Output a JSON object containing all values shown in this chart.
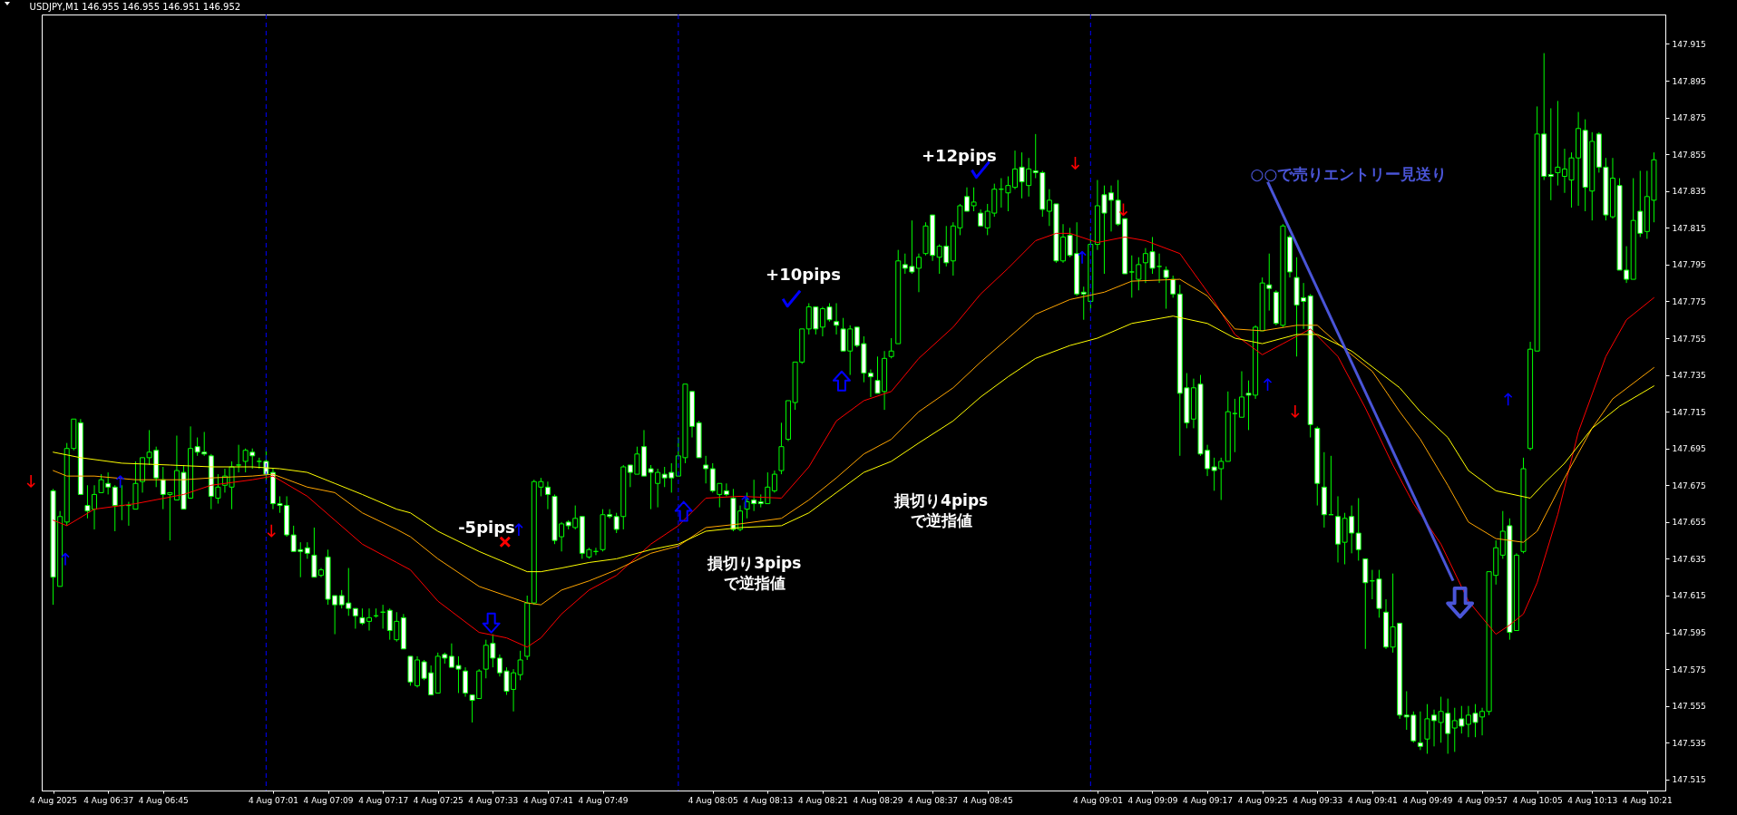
{
  "chart_data": {
    "type": "candlestick",
    "title": "USDJPY,M1  146.955 146.955 146.951 146.952",
    "x": [
      "2025-08-04T06:29",
      "2025-08-04T06:30",
      "2025-08-04T06:31",
      "2025-08-04T06:32",
      "2025-08-04T06:33",
      "2025-08-04T06:34",
      "2025-08-04T06:35",
      "2025-08-04T06:36",
      "2025-08-04T06:37",
      "2025-08-04T06:38",
      "2025-08-04T06:39",
      "2025-08-04T06:40",
      "2025-08-04T06:41",
      "2025-08-04T06:42",
      "2025-08-04T06:43",
      "2025-08-04T06:44",
      "2025-08-04T06:45",
      "2025-08-04T06:46",
      "2025-08-04T06:47",
      "2025-08-04T06:48",
      "2025-08-04T06:49",
      "2025-08-04T06:50",
      "2025-08-04T06:51",
      "2025-08-04T06:52",
      "2025-08-04T06:53",
      "2025-08-04T06:54",
      "2025-08-04T06:55",
      "2025-08-04T06:56",
      "2025-08-04T06:57",
      "2025-08-04T06:58",
      "2025-08-04T06:59",
      "2025-08-04T07:00",
      "2025-08-04T07:01",
      "2025-08-04T07:02",
      "2025-08-04T07:03",
      "2025-08-04T07:04",
      "2025-08-04T07:05",
      "2025-08-04T07:06",
      "2025-08-04T07:07",
      "2025-08-04T07:08",
      "2025-08-04T07:09",
      "2025-08-04T07:10",
      "2025-08-04T07:11",
      "2025-08-04T07:12",
      "2025-08-04T07:13",
      "2025-08-04T07:14",
      "2025-08-04T07:15",
      "2025-08-04T07:16",
      "2025-08-04T07:17",
      "2025-08-04T07:18",
      "2025-08-04T07:19",
      "2025-08-04T07:20",
      "2025-08-04T07:21",
      "2025-08-04T07:22",
      "2025-08-04T07:23",
      "2025-08-04T07:24",
      "2025-08-04T07:25",
      "2025-08-04T07:26",
      "2025-08-04T07:27",
      "2025-08-04T07:28",
      "2025-08-04T07:29",
      "2025-08-04T07:30",
      "2025-08-04T07:31",
      "2025-08-04T07:32",
      "2025-08-04T07:33",
      "2025-08-04T07:34",
      "2025-08-04T07:35",
      "2025-08-04T07:36",
      "2025-08-04T07:37",
      "2025-08-04T07:38",
      "2025-08-04T07:39",
      "2025-08-04T07:40",
      "2025-08-04T07:41",
      "2025-08-04T07:42",
      "2025-08-04T07:43",
      "2025-08-04T07:44",
      "2025-08-04T07:45",
      "2025-08-04T07:46",
      "2025-08-04T07:47",
      "2025-08-04T07:48",
      "2025-08-04T07:49",
      "2025-08-04T07:50",
      "2025-08-04T07:51",
      "2025-08-04T07:52",
      "2025-08-04T07:53",
      "2025-08-04T07:54",
      "2025-08-04T07:55",
      "2025-08-04T07:56",
      "2025-08-04T07:57",
      "2025-08-04T07:58",
      "2025-08-04T07:59",
      "2025-08-04T08:00",
      "2025-08-04T08:01",
      "2025-08-04T08:02",
      "2025-08-04T08:03",
      "2025-08-04T08:04",
      "2025-08-04T08:05",
      "2025-08-04T08:06",
      "2025-08-04T08:07",
      "2025-08-04T08:08",
      "2025-08-04T08:09",
      "2025-08-04T08:10",
      "2025-08-04T08:11",
      "2025-08-04T08:12",
      "2025-08-04T08:13",
      "2025-08-04T08:14",
      "2025-08-04T08:15",
      "2025-08-04T08:16",
      "2025-08-04T08:17",
      "2025-08-04T08:18",
      "2025-08-04T08:19",
      "2025-08-04T08:20",
      "2025-08-04T08:21",
      "2025-08-04T08:22",
      "2025-08-04T08:23",
      "2025-08-04T08:24",
      "2025-08-04T08:25",
      "2025-08-04T08:26",
      "2025-08-04T08:27",
      "2025-08-04T08:28",
      "2025-08-04T08:29",
      "2025-08-04T08:30",
      "2025-08-04T08:31",
      "2025-08-04T08:32",
      "2025-08-04T08:33",
      "2025-08-04T08:34",
      "2025-08-04T08:35",
      "2025-08-04T08:36",
      "2025-08-04T08:37",
      "2025-08-04T08:38",
      "2025-08-04T08:39",
      "2025-08-04T08:40",
      "2025-08-04T08:41",
      "2025-08-04T08:42",
      "2025-08-04T08:43",
      "2025-08-04T08:44",
      "2025-08-04T08:45",
      "2025-08-04T08:46",
      "2025-08-04T08:47",
      "2025-08-04T08:48",
      "2025-08-04T08:49",
      "2025-08-04T08:50",
      "2025-08-04T08:51",
      "2025-08-04T08:52",
      "2025-08-04T08:53",
      "2025-08-04T08:54",
      "2025-08-04T08:55",
      "2025-08-04T08:56",
      "2025-08-04T08:57",
      "2025-08-04T08:58",
      "2025-08-04T08:59",
      "2025-08-04T09:00",
      "2025-08-04T09:01",
      "2025-08-04T09:02",
      "2025-08-04T09:03",
      "2025-08-04T09:04",
      "2025-08-04T09:05",
      "2025-08-04T09:06",
      "2025-08-04T09:07",
      "2025-08-04T09:08",
      "2025-08-04T09:09",
      "2025-08-04T09:10",
      "2025-08-04T09:11",
      "2025-08-04T09:12",
      "2025-08-04T09:13",
      "2025-08-04T09:14",
      "2025-08-04T09:15",
      "2025-08-04T09:16",
      "2025-08-04T09:17",
      "2025-08-04T09:18",
      "2025-08-04T09:19",
      "2025-08-04T09:20",
      "2025-08-04T09:21",
      "2025-08-04T09:22",
      "2025-08-04T09:23",
      "2025-08-04T09:24",
      "2025-08-04T09:25",
      "2025-08-04T09:26",
      "2025-08-04T09:27",
      "2025-08-04T09:28",
      "2025-08-04T09:29",
      "2025-08-04T09:30",
      "2025-08-04T09:31",
      "2025-08-04T09:32",
      "2025-08-04T09:33",
      "2025-08-04T09:34",
      "2025-08-04T09:35",
      "2025-08-04T09:36",
      "2025-08-04T09:37",
      "2025-08-04T09:38",
      "2025-08-04T09:39",
      "2025-08-04T09:40",
      "2025-08-04T09:41",
      "2025-08-04T09:42",
      "2025-08-04T09:43",
      "2025-08-04T09:44",
      "2025-08-04T09:45",
      "2025-08-04T09:46",
      "2025-08-04T09:47",
      "2025-08-04T09:48",
      "2025-08-04T09:49",
      "2025-08-04T09:50",
      "2025-08-04T09:51",
      "2025-08-04T09:52",
      "2025-08-04T09:53",
      "2025-08-04T09:54",
      "2025-08-04T09:55",
      "2025-08-04T09:56",
      "2025-08-04T09:57",
      "2025-08-04T09:58",
      "2025-08-04T09:59",
      "2025-08-04T10:00",
      "2025-08-04T10:01",
      "2025-08-04T10:02",
      "2025-08-04T10:03",
      "2025-08-04T10:04",
      "2025-08-04T10:05",
      "2025-08-04T10:06",
      "2025-08-04T10:07",
      "2025-08-04T10:08",
      "2025-08-04T10:09",
      "2025-08-04T10:10",
      "2025-08-04T10:11",
      "2025-08-04T10:12",
      "2025-08-04T10:13",
      "2025-08-04T10:14",
      "2025-08-04T10:15",
      "2025-08-04T10:16",
      "2025-08-04T10:17",
      "2025-08-04T10:18",
      "2025-08-04T10:19",
      "2025-08-04T10:20",
      "2025-08-04T10:21",
      "2025-08-04T10:22"
    ],
    "ohlc": [
      [
        147.672,
        147.673,
        147.61,
        147.625
      ],
      [
        147.62,
        147.661,
        147.62,
        147.658
      ],
      [
        147.655,
        147.698,
        147.653,
        147.695
      ],
      [
        147.695,
        147.711,
        147.694,
        147.711
      ],
      [
        147.709,
        147.711,
        147.67,
        147.67
      ],
      [
        147.664,
        147.675,
        147.657,
        147.661
      ],
      [
        147.662,
        147.675,
        147.651,
        147.67
      ],
      [
        147.671,
        147.681,
        147.671,
        147.678
      ],
      [
        147.676,
        147.682,
        147.67,
        147.674
      ],
      [
        147.674,
        147.675,
        147.65,
        147.664
      ],
      [
        147.664,
        147.675,
        147.656,
        147.664
      ],
      [
        147.664,
        147.666,
        147.653,
        147.664
      ],
      [
        147.662,
        147.688,
        147.662,
        147.676
      ],
      [
        147.677,
        147.69,
        147.671,
        147.69
      ],
      [
        147.69,
        147.705,
        147.686,
        147.693
      ],
      [
        147.694,
        147.696,
        147.674,
        147.679
      ],
      [
        147.678,
        147.685,
        147.662,
        147.67
      ],
      [
        147.67,
        147.671,
        147.645,
        147.671
      ],
      [
        147.667,
        147.702,
        147.667,
        147.683
      ],
      [
        147.682,
        147.686,
        147.662,
        147.662
      ],
      [
        147.668,
        147.707,
        147.668,
        147.695
      ],
      [
        147.696,
        147.701,
        147.691,
        147.693
      ],
      [
        147.693,
        147.704,
        147.691,
        147.692
      ],
      [
        147.691,
        147.692,
        147.662,
        147.669
      ],
      [
        147.668,
        147.681,
        147.665,
        147.674
      ],
      [
        147.675,
        147.684,
        147.671,
        147.68
      ],
      [
        147.674,
        147.688,
        147.662,
        147.685
      ],
      [
        147.686,
        147.697,
        147.682,
        147.686
      ],
      [
        147.688,
        147.695,
        147.682,
        147.694
      ],
      [
        147.693,
        147.695,
        147.684,
        147.691
      ],
      [
        147.688,
        147.69,
        147.684,
        147.688
      ],
      [
        147.688,
        147.695,
        147.677,
        147.681
      ],
      [
        147.682,
        147.684,
        147.662,
        147.665
      ],
      [
        147.665,
        147.669,
        147.66,
        147.664
      ],
      [
        147.664,
        147.669,
        147.647,
        147.648
      ],
      [
        147.648,
        147.653,
        147.639,
        147.639
      ],
      [
        147.64,
        147.644,
        147.625,
        147.639
      ],
      [
        147.641,
        147.644,
        147.635,
        147.638
      ],
      [
        147.637,
        147.652,
        147.625,
        147.625
      ],
      [
        147.626,
        147.63,
        147.625,
        147.629
      ],
      [
        147.636,
        147.64,
        147.61,
        147.613
      ],
      [
        147.615,
        147.615,
        147.594,
        147.61
      ],
      [
        147.615,
        147.618,
        147.608,
        147.61
      ],
      [
        147.611,
        147.63,
        147.604,
        147.608
      ],
      [
        147.608,
        147.608,
        147.597,
        147.604
      ],
      [
        147.603,
        147.608,
        147.599,
        147.6
      ],
      [
        147.601,
        147.608,
        147.596,
        147.603
      ],
      [
        147.604,
        147.608,
        147.603,
        147.604
      ],
      [
        147.606,
        147.61,
        147.597,
        147.606
      ],
      [
        147.607,
        147.608,
        147.591,
        147.596
      ],
      [
        147.591,
        147.606,
        147.59,
        147.601
      ],
      [
        147.603,
        147.605,
        147.586,
        147.586
      ],
      [
        147.582,
        147.582,
        147.566,
        147.568
      ],
      [
        147.566,
        147.582,
        147.565,
        147.58
      ],
      [
        147.579,
        147.58,
        147.569,
        147.57
      ],
      [
        147.573,
        147.577,
        147.561,
        147.561
      ],
      [
        147.562,
        147.584,
        147.562,
        147.582
      ],
      [
        147.583,
        147.584,
        147.578,
        147.581
      ],
      [
        147.582,
        147.589,
        147.576,
        147.576
      ],
      [
        147.577,
        147.582,
        147.562,
        147.575
      ],
      [
        147.574,
        147.576,
        147.56,
        147.562
      ],
      [
        147.561,
        147.561,
        147.546,
        147.558
      ],
      [
        147.559,
        147.575,
        147.559,
        147.574
      ],
      [
        147.575,
        147.591,
        147.57,
        147.588
      ],
      [
        147.589,
        147.594,
        147.576,
        147.581
      ],
      [
        147.581,
        147.583,
        147.571,
        147.573
      ],
      [
        147.574,
        147.576,
        147.561,
        147.563
      ],
      [
        147.564,
        147.575,
        147.552,
        147.573
      ],
      [
        147.572,
        147.585,
        147.569,
        147.58
      ],
      [
        147.582,
        147.615,
        147.58,
        147.611
      ],
      [
        147.611,
        147.678,
        147.61,
        147.677
      ],
      [
        147.674,
        147.679,
        147.669,
        147.677
      ],
      [
        147.674,
        147.677,
        147.662,
        147.67
      ],
      [
        147.669,
        147.67,
        147.643,
        147.645
      ],
      [
        147.647,
        147.655,
        147.639,
        147.654
      ],
      [
        147.655,
        147.656,
        147.651,
        147.653
      ],
      [
        147.652,
        147.664,
        147.651,
        147.657
      ],
      [
        147.658,
        147.658,
        147.635,
        147.638
      ],
      [
        147.636,
        147.641,
        147.635,
        147.64
      ],
      [
        147.639,
        147.641,
        147.637,
        147.639
      ],
      [
        147.64,
        147.662,
        147.639,
        147.659
      ],
      [
        147.659,
        147.662,
        147.657,
        147.658
      ],
      [
        147.658,
        147.66,
        147.649,
        147.651
      ],
      [
        147.658,
        147.686,
        147.651,
        147.685
      ],
      [
        147.686,
        147.686,
        147.674,
        147.682
      ],
      [
        147.681,
        147.696,
        147.681,
        147.692
      ],
      [
        147.696,
        147.705,
        147.68,
        147.68
      ],
      [
        147.684,
        147.686,
        147.662,
        147.682
      ],
      [
        147.676,
        147.684,
        147.663,
        147.682
      ],
      [
        147.681,
        147.685,
        147.674,
        147.679
      ],
      [
        147.682,
        147.687,
        147.671,
        147.679
      ],
      [
        147.68,
        147.701,
        147.68,
        147.691
      ],
      [
        147.69,
        147.73,
        147.687,
        147.73
      ],
      [
        147.726,
        147.726,
        147.701,
        147.707
      ],
      [
        147.709,
        147.71,
        147.69,
        147.69
      ],
      [
        147.686,
        147.691,
        147.676,
        147.684
      ],
      [
        147.684,
        147.687,
        147.671,
        147.672
      ],
      [
        147.67,
        147.676,
        147.663,
        147.676
      ],
      [
        147.672,
        147.676,
        147.669,
        147.67
      ],
      [
        147.668,
        147.673,
        147.65,
        147.651
      ],
      [
        147.651,
        147.664,
        147.65,
        147.661
      ],
      [
        147.662,
        147.671,
        147.657,
        147.666
      ],
      [
        147.667,
        147.678,
        147.661,
        147.665
      ],
      [
        147.666,
        147.67,
        147.663,
        147.665
      ],
      [
        147.665,
        147.682,
        147.665,
        147.674
      ],
      [
        147.672,
        147.683,
        147.671,
        147.681
      ],
      [
        147.683,
        147.709,
        147.681,
        147.696
      ],
      [
        147.7,
        147.721,
        147.699,
        147.721
      ],
      [
        147.72,
        147.742,
        147.716,
        147.742
      ],
      [
        147.742,
        147.76,
        147.741,
        147.76
      ],
      [
        147.76,
        147.774,
        147.757,
        147.772
      ],
      [
        147.772,
        147.772,
        147.757,
        147.76
      ],
      [
        147.761,
        147.772,
        147.756,
        147.771
      ],
      [
        147.772,
        147.774,
        147.764,
        147.765
      ],
      [
        147.764,
        147.774,
        147.757,
        147.762
      ],
      [
        147.76,
        147.766,
        147.748,
        147.748
      ],
      [
        147.748,
        147.762,
        147.735,
        147.76
      ],
      [
        147.761,
        147.761,
        147.75,
        147.751
      ],
      [
        147.752,
        147.756,
        147.731,
        147.736
      ],
      [
        147.736,
        147.738,
        147.723,
        147.734
      ],
      [
        147.732,
        147.745,
        147.725,
        147.725
      ],
      [
        147.726,
        147.748,
        147.716,
        147.744
      ],
      [
        147.745,
        147.755,
        147.744,
        147.748
      ],
      [
        147.752,
        147.803,
        147.752,
        147.797
      ],
      [
        147.795,
        147.801,
        147.79,
        147.793
      ],
      [
        147.794,
        147.819,
        147.79,
        147.791
      ],
      [
        147.793,
        147.801,
        147.78,
        147.799
      ],
      [
        147.801,
        147.818,
        147.8,
        147.816
      ],
      [
        147.822,
        147.822,
        147.797,
        147.8
      ],
      [
        147.799,
        147.806,
        147.79,
        147.805
      ],
      [
        147.805,
        147.816,
        147.794,
        147.796
      ],
      [
        147.797,
        147.818,
        147.789,
        147.816
      ],
      [
        147.815,
        147.828,
        147.811,
        147.827
      ],
      [
        147.832,
        147.837,
        147.824,
        147.824
      ],
      [
        147.827,
        147.837,
        147.824,
        147.829
      ],
      [
        147.823,
        147.825,
        147.816,
        147.816
      ],
      [
        147.815,
        147.828,
        147.811,
        147.824
      ],
      [
        147.823,
        147.839,
        147.821,
        147.836
      ],
      [
        147.836,
        147.842,
        147.826,
        147.836
      ],
      [
        147.834,
        147.843,
        147.824,
        147.838
      ],
      [
        147.837,
        147.857,
        147.836,
        147.847
      ],
      [
        147.848,
        147.856,
        147.831,
        147.84
      ],
      [
        147.838,
        147.853,
        147.832,
        147.847
      ],
      [
        147.846,
        147.866,
        147.842,
        147.845
      ],
      [
        147.845,
        147.846,
        147.821,
        147.825
      ],
      [
        147.824,
        147.836,
        147.816,
        147.83
      ],
      [
        147.828,
        147.828,
        147.796,
        147.797
      ],
      [
        147.797,
        147.817,
        147.796,
        147.81
      ],
      [
        147.811,
        147.815,
        147.799,
        147.8
      ],
      [
        147.801,
        147.818,
        147.778,
        147.779
      ],
      [
        147.78,
        147.783,
        147.765,
        147.779
      ],
      [
        147.775,
        147.812,
        147.77,
        147.806
      ],
      [
        147.806,
        147.841,
        147.803,
        147.827
      ],
      [
        147.833,
        147.838,
        147.79,
        147.823
      ],
      [
        147.834,
        147.838,
        147.813,
        147.83
      ],
      [
        147.83,
        147.841,
        147.816,
        147.817
      ],
      [
        147.82,
        147.82,
        147.79,
        147.79
      ],
      [
        147.791,
        147.8,
        147.777,
        147.791
      ],
      [
        147.787,
        147.799,
        147.781,
        147.795
      ],
      [
        147.796,
        147.804,
        147.785,
        147.801
      ],
      [
        147.802,
        147.81,
        147.79,
        147.793
      ],
      [
        147.794,
        147.801,
        147.785,
        147.794
      ],
      [
        147.792,
        147.794,
        147.771,
        147.788
      ],
      [
        147.787,
        147.789,
        147.777,
        147.779
      ],
      [
        147.779,
        147.784,
        147.691,
        147.725
      ],
      [
        147.728,
        147.736,
        147.706,
        147.709
      ],
      [
        147.711,
        147.733,
        147.706,
        147.728
      ],
      [
        147.73,
        147.735,
        147.691,
        147.692
      ],
      [
        147.694,
        147.697,
        147.68,
        147.684
      ],
      [
        147.685,
        147.69,
        147.672,
        147.683
      ],
      [
        147.684,
        147.69,
        147.667,
        147.688
      ],
      [
        147.688,
        147.726,
        147.688,
        147.715
      ],
      [
        147.714,
        147.722,
        147.693,
        147.714
      ],
      [
        147.712,
        147.737,
        147.712,
        147.723
      ],
      [
        147.725,
        147.732,
        147.705,
        147.724
      ],
      [
        147.724,
        147.762,
        147.722,
        147.761
      ],
      [
        147.759,
        147.788,
        147.759,
        147.785
      ],
      [
        147.784,
        147.801,
        147.77,
        147.782
      ],
      [
        147.78,
        147.781,
        147.762,
        147.763
      ],
      [
        147.762,
        147.817,
        147.761,
        147.816
      ],
      [
        147.81,
        147.811,
        147.788,
        147.791
      ],
      [
        147.788,
        147.799,
        147.745,
        147.773
      ],
      [
        147.777,
        147.785,
        147.76,
        147.775
      ],
      [
        147.778,
        147.779,
        147.701,
        147.708
      ],
      [
        147.706,
        147.707,
        147.664,
        147.676
      ],
      [
        147.674,
        147.693,
        147.652,
        147.659
      ],
      [
        147.659,
        147.691,
        147.659,
        147.659
      ],
      [
        147.658,
        147.669,
        147.633,
        147.643
      ],
      [
        147.644,
        147.66,
        147.632,
        147.657
      ],
      [
        147.658,
        147.664,
        147.638,
        147.649
      ],
      [
        147.649,
        147.668,
        147.634,
        147.64
      ],
      [
        147.635,
        147.635,
        147.586,
        147.622
      ],
      [
        147.623,
        147.629,
        147.613,
        147.623
      ],
      [
        147.624,
        147.629,
        147.603,
        147.608
      ],
      [
        147.606,
        147.613,
        147.586,
        147.587
      ],
      [
        147.587,
        147.627,
        147.584,
        147.598
      ],
      [
        147.6,
        147.6,
        147.548,
        147.55
      ],
      [
        147.55,
        147.563,
        147.542,
        147.549
      ],
      [
        147.55,
        147.552,
        147.535,
        147.536
      ],
      [
        147.535,
        147.552,
        147.531,
        147.533
      ],
      [
        147.537,
        147.556,
        147.529,
        147.548
      ],
      [
        147.55,
        147.553,
        147.533,
        147.547
      ],
      [
        147.546,
        147.56,
        147.535,
        147.552
      ],
      [
        147.551,
        147.559,
        147.529,
        147.54
      ],
      [
        147.543,
        147.554,
        147.53,
        147.547
      ],
      [
        147.548,
        147.555,
        147.54,
        147.544
      ],
      [
        147.545,
        147.555,
        147.538,
        147.55
      ],
      [
        147.551,
        147.556,
        147.538,
        147.546
      ],
      [
        147.549,
        147.554,
        147.539,
        147.552
      ],
      [
        147.552,
        147.628,
        147.55,
        147.628
      ],
      [
        147.626,
        147.645,
        147.621,
        147.641
      ],
      [
        147.637,
        147.661,
        147.635,
        147.65
      ],
      [
        147.653,
        147.657,
        147.591,
        147.595
      ],
      [
        147.596,
        147.638,
        147.596,
        147.637
      ],
      [
        147.639,
        147.69,
        147.638,
        147.684
      ],
      [
        147.695,
        147.753,
        147.694,
        147.749
      ],
      [
        147.748,
        147.881,
        147.748,
        147.866
      ],
      [
        147.866,
        147.91,
        147.841,
        147.843
      ],
      [
        147.844,
        147.88,
        147.83,
        147.843
      ],
      [
        147.845,
        147.884,
        147.838,
        147.848
      ],
      [
        147.843,
        147.858,
        147.834,
        147.847
      ],
      [
        147.841,
        147.856,
        147.826,
        147.853
      ],
      [
        147.853,
        147.878,
        147.827,
        147.869
      ],
      [
        147.868,
        147.874,
        147.824,
        147.837
      ],
      [
        147.835,
        147.867,
        147.819,
        147.862
      ],
      [
        147.866,
        147.867,
        147.845,
        147.848
      ],
      [
        147.848,
        147.853,
        147.819,
        147.822
      ],
      [
        147.821,
        147.853,
        147.82,
        147.842
      ],
      [
        147.838,
        147.842,
        147.792,
        147.792
      ],
      [
        147.792,
        147.805,
        147.785,
        147.787
      ],
      [
        147.787,
        147.842,
        147.787,
        147.819
      ],
      [
        147.824,
        147.846,
        147.81,
        147.812
      ],
      [
        147.813,
        147.846,
        147.809,
        147.832
      ],
      [
        147.83,
        147.856,
        147.818,
        147.852
      ]
    ],
    "series": [
      {
        "type": "line",
        "color": "#ff0000",
        "x": [
          "2025-08-04T06:29",
          "2025-08-04T06:31",
          "2025-08-04T06:35",
          "2025-08-04T06:41",
          "2025-08-04T06:48",
          "2025-08-04T06:52",
          "2025-08-04T06:58",
          "2025-08-04T07:01",
          "2025-08-04T07:06",
          "2025-08-04T07:10",
          "2025-08-04T07:14",
          "2025-08-04T07:19",
          "2025-08-04T07:21",
          "2025-08-04T07:25",
          "2025-08-04T07:31",
          "2025-08-04T07:35",
          "2025-08-04T07:38",
          "2025-08-04T07:40",
          "2025-08-04T07:43",
          "2025-08-04T07:47",
          "2025-08-04T07:51",
          "2025-08-04T07:56",
          "2025-08-04T08:00",
          "2025-08-04T08:04",
          "2025-08-04T08:09",
          "2025-08-04T08:15",
          "2025-08-04T08:19",
          "2025-08-04T08:23",
          "2025-08-04T08:27",
          "2025-08-04T08:31",
          "2025-08-04T08:35",
          "2025-08-04T08:40",
          "2025-08-04T08:44",
          "2025-08-04T08:48",
          "2025-08-04T08:52",
          "2025-08-04T08:55",
          "2025-08-04T08:57",
          "2025-08-04T09:01",
          "2025-08-04T09:05",
          "2025-08-04T09:08",
          "2025-08-04T09:13",
          "2025-08-04T09:18",
          "2025-08-04T09:21",
          "2025-08-04T09:25",
          "2025-08-04T09:28",
          "2025-08-04T09:32",
          "2025-08-04T09:36",
          "2025-08-04T09:40",
          "2025-08-04T09:44",
          "2025-08-04T09:47",
          "2025-08-04T09:51",
          "2025-08-04T09:55",
          "2025-08-04T09:59",
          "2025-08-04T10:01",
          "2025-08-04T10:03",
          "2025-08-04T10:05",
          "2025-08-04T10:08",
          "2025-08-04T10:11",
          "2025-08-04T10:15",
          "2025-08-04T10:18",
          "2025-08-04T10:22"
        ],
        "values": [
          147.656,
          147.653,
          147.662,
          147.665,
          147.67,
          147.675,
          147.678,
          147.68,
          147.669,
          147.656,
          147.643,
          147.633,
          147.629,
          147.612,
          147.595,
          147.592,
          147.587,
          147.592,
          147.605,
          147.618,
          147.626,
          147.643,
          147.653,
          147.668,
          147.669,
          147.668,
          147.685,
          147.71,
          147.721,
          147.726,
          147.744,
          147.761,
          147.779,
          147.793,
          147.808,
          147.812,
          147.812,
          147.807,
          147.81,
          147.808,
          147.801,
          147.775,
          147.757,
          147.746,
          147.752,
          147.76,
          147.745,
          147.717,
          147.686,
          147.665,
          147.643,
          147.612,
          147.594,
          147.599,
          147.605,
          147.622,
          147.659,
          147.704,
          147.745,
          147.765,
          147.777
        ]
      },
      {
        "type": "line",
        "color": "#ffa500",
        "x": [
          "2025-08-04T06:29",
          "2025-08-04T06:31",
          "2025-08-04T06:35",
          "2025-08-04T06:41",
          "2025-08-04T06:48",
          "2025-08-04T06:52",
          "2025-08-04T06:58",
          "2025-08-04T07:01",
          "2025-08-04T07:06",
          "2025-08-04T07:10",
          "2025-08-04T07:14",
          "2025-08-04T07:19",
          "2025-08-04T07:21",
          "2025-08-04T07:25",
          "2025-08-04T07:31",
          "2025-08-04T07:38",
          "2025-08-04T07:40",
          "2025-08-04T07:43",
          "2025-08-04T07:47",
          "2025-08-04T07:51",
          "2025-08-04T07:56",
          "2025-08-04T08:00",
          "2025-08-04T08:04",
          "2025-08-04T08:09",
          "2025-08-04T08:15",
          "2025-08-04T08:19",
          "2025-08-04T08:23",
          "2025-08-04T08:27",
          "2025-08-04T08:31",
          "2025-08-04T08:35",
          "2025-08-04T08:40",
          "2025-08-04T08:44",
          "2025-08-04T08:48",
          "2025-08-04T08:52",
          "2025-08-04T08:57",
          "2025-08-04T09:02",
          "2025-08-04T09:06",
          "2025-08-04T09:13",
          "2025-08-04T09:17",
          "2025-08-04T09:21",
          "2025-08-04T09:25",
          "2025-08-04T09:30",
          "2025-08-04T09:33",
          "2025-08-04T09:36",
          "2025-08-04T09:41",
          "2025-08-04T09:45",
          "2025-08-04T09:48",
          "2025-08-04T09:52",
          "2025-08-04T09:55",
          "2025-08-04T09:59",
          "2025-08-04T10:03",
          "2025-08-04T10:05",
          "2025-08-04T10:09",
          "2025-08-04T10:13",
          "2025-08-04T10:16",
          "2025-08-04T10:22"
        ],
        "values": [
          147.683,
          147.68,
          147.68,
          147.678,
          147.678,
          147.679,
          147.68,
          147.681,
          147.674,
          147.671,
          147.66,
          147.651,
          147.647,
          147.635,
          147.62,
          147.611,
          147.61,
          147.618,
          147.623,
          147.629,
          147.638,
          147.642,
          147.652,
          147.654,
          147.657,
          147.667,
          147.679,
          147.692,
          147.7,
          147.715,
          147.728,
          147.742,
          147.755,
          147.768,
          147.776,
          147.78,
          147.786,
          147.787,
          147.778,
          147.76,
          147.759,
          147.762,
          147.762,
          147.752,
          147.737,
          147.715,
          147.7,
          147.675,
          147.655,
          147.646,
          147.644,
          147.65,
          147.679,
          147.706,
          147.722,
          147.739
        ]
      },
      {
        "type": "line",
        "color": "#ffff00",
        "x": [
          "2025-08-04T06:29",
          "2025-08-04T06:33",
          "2025-08-04T06:39",
          "2025-08-04T06:46",
          "2025-08-04T06:52",
          "2025-08-04T06:58",
          "2025-08-04T07:02",
          "2025-08-04T07:06",
          "2025-08-04T07:10",
          "2025-08-04T07:14",
          "2025-08-04T07:19",
          "2025-08-04T07:21",
          "2025-08-04T07:25",
          "2025-08-04T07:31",
          "2025-08-04T07:38",
          "2025-08-04T07:40",
          "2025-08-04T07:43",
          "2025-08-04T07:47",
          "2025-08-04T07:51",
          "2025-08-04T07:56",
          "2025-08-04T08:00",
          "2025-08-04T08:04",
          "2025-08-04T08:09",
          "2025-08-04T08:15",
          "2025-08-04T08:19",
          "2025-08-04T08:23",
          "2025-08-04T08:27",
          "2025-08-04T08:31",
          "2025-08-04T08:35",
          "2025-08-04T08:40",
          "2025-08-04T08:44",
          "2025-08-04T08:48",
          "2025-08-04T08:52",
          "2025-08-04T08:57",
          "2025-08-04T09:01",
          "2025-08-04T09:06",
          "2025-08-04T09:12",
          "2025-08-04T09:17",
          "2025-08-04T09:21",
          "2025-08-04T09:25",
          "2025-08-04T09:30",
          "2025-08-04T09:33",
          "2025-08-04T09:38",
          "2025-08-04T09:45",
          "2025-08-04T09:48",
          "2025-08-04T09:52",
          "2025-08-04T09:55",
          "2025-08-04T09:59",
          "2025-08-04T10:04",
          "2025-08-04T10:06",
          "2025-08-04T10:09",
          "2025-08-04T10:13",
          "2025-08-04T10:17",
          "2025-08-04T10:22"
        ],
        "values": [
          147.693,
          147.69,
          147.687,
          147.686,
          147.685,
          147.685,
          147.684,
          147.682,
          147.676,
          147.67,
          147.662,
          147.66,
          147.65,
          147.639,
          147.628,
          147.628,
          147.63,
          147.633,
          147.635,
          147.64,
          147.643,
          147.65,
          147.652,
          147.653,
          147.66,
          147.671,
          147.682,
          147.688,
          147.698,
          147.71,
          147.723,
          147.734,
          147.744,
          147.751,
          147.755,
          147.763,
          147.767,
          147.763,
          147.755,
          147.752,
          147.757,
          147.757,
          147.748,
          147.728,
          147.715,
          147.701,
          147.683,
          147.672,
          147.668,
          147.676,
          147.687,
          147.706,
          147.718,
          147.729
        ]
      }
    ],
    "annotations": [
      "-5pips",
      "+10pips",
      "+12pips",
      "損切り3pips\nで逆指値",
      "損切り4pips\nで逆指値",
      "○○で売りエントリー見送り"
    ],
    "ref_lines": [
      {
        "axis": "x",
        "value": "2025-08-04T07:00",
        "color": "#0000ff",
        "line_style": "dashed"
      },
      {
        "axis": "x",
        "value": "2025-08-04T08:00",
        "color": "#0000ff",
        "line_style": "dashed"
      },
      {
        "axis": "x",
        "value": "2025-08-04T09:00",
        "color": "#0000ff",
        "line_style": "dashed"
      }
    ],
    "xlim": [
      "2025-08-04T06:28",
      "2025-08-04T10:23"
    ],
    "xticks": [
      {
        "value": "2025-08-04T06:29",
        "label": "4 Aug 2025"
      },
      {
        "value": "2025-08-04T06:37",
        "label": "4 Aug 06:37"
      },
      {
        "value": "2025-08-04T06:45",
        "label": "4 Aug 06:45"
      },
      {
        "value": "2025-08-04T07:01",
        "label": "4 Aug 07:01"
      },
      {
        "value": "2025-08-04T07:09",
        "label": "4 Aug 07:09"
      },
      {
        "value": "2025-08-04T07:17",
        "label": "4 Aug 07:17"
      },
      {
        "value": "2025-08-04T07:25",
        "label": "4 Aug 07:25"
      },
      {
        "value": "2025-08-04T07:33",
        "label": "4 Aug 07:33"
      },
      {
        "value": "2025-08-04T07:41",
        "label": "4 Aug 07:41"
      },
      {
        "value": "2025-08-04T07:49",
        "label": "4 Aug 07:49"
      },
      {
        "value": "2025-08-04T08:05",
        "label": "4 Aug 08:05"
      },
      {
        "value": "2025-08-04T08:13",
        "label": "4 Aug 08:13"
      },
      {
        "value": "2025-08-04T08:21",
        "label": "4 Aug 08:21"
      },
      {
        "value": "2025-08-04T08:29",
        "label": "4 Aug 08:29"
      },
      {
        "value": "2025-08-04T08:37",
        "label": "4 Aug 08:37"
      },
      {
        "value": "2025-08-04T08:45",
        "label": "4 Aug 08:45"
      },
      {
        "value": "2025-08-04T09:01",
        "label": "4 Aug 09:01"
      },
      {
        "value": "2025-08-04T09:09",
        "label": "4 Aug 09:09"
      },
      {
        "value": "2025-08-04T09:17",
        "label": "4 Aug 09:17"
      },
      {
        "value": "2025-08-04T09:25",
        "label": "4 Aug 09:25"
      },
      {
        "value": "2025-08-04T09:33",
        "label": "4 Aug 09:33"
      },
      {
        "value": "2025-08-04T09:41",
        "label": "4 Aug 09:41"
      },
      {
        "value": "2025-08-04T09:49",
        "label": "4 Aug 09:49"
      },
      {
        "value": "2025-08-04T09:57",
        "label": "4 Aug 09:57"
      },
      {
        "value": "2025-08-04T10:05",
        "label": "4 Aug 10:05"
      },
      {
        "value": "2025-08-04T10:13",
        "label": "4 Aug 10:13"
      },
      {
        "value": "2025-08-04T10:21",
        "label": "4 Aug 10:21"
      }
    ],
    "ylim": [
      147.509,
      147.931
    ],
    "yticks": [
      147.515,
      147.535,
      147.555,
      147.575,
      147.595,
      147.615,
      147.635,
      147.655,
      147.675,
      147.695,
      147.715,
      147.735,
      147.755,
      147.775,
      147.795,
      147.815,
      147.835,
      147.855,
      147.875,
      147.895,
      147.915
    ]
  }
}
